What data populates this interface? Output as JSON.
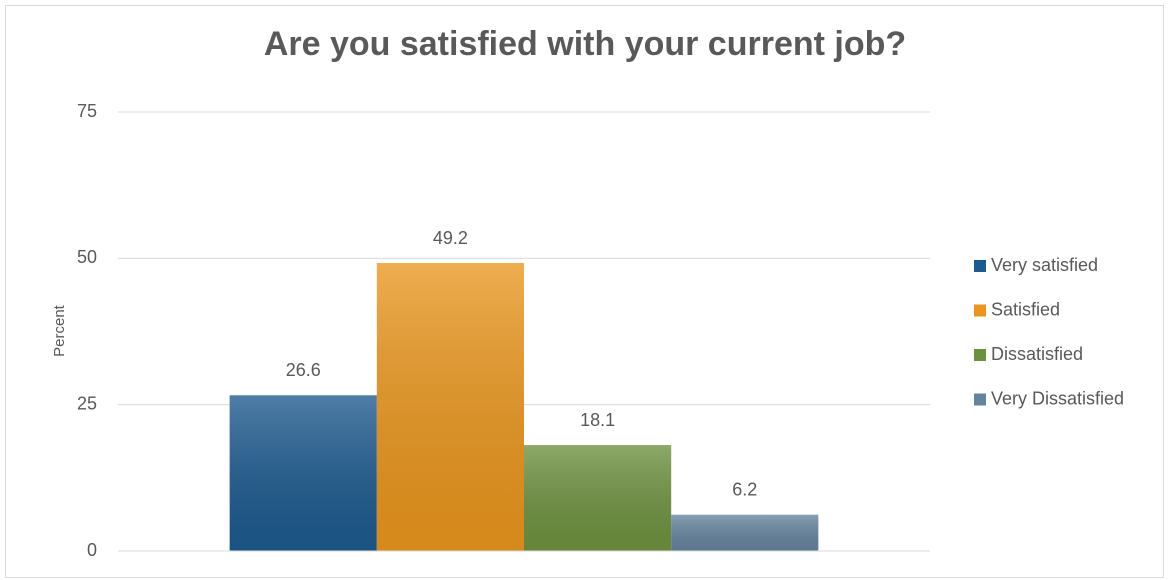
{
  "chart_data": {
    "type": "bar",
    "title": "Are you satisfied with your current job?",
    "y_label": "Percent",
    "categories": [
      null
    ],
    "series": [
      {
        "name": "Very satisfied",
        "color": "#1d5a8e",
        "values": [
          26.6
        ]
      },
      {
        "name": "Satisfied",
        "color": "#e9961e",
        "values": [
          49.2
        ]
      },
      {
        "name": "Dissatisfied",
        "color": "#6e9140",
        "values": [
          18.1
        ]
      },
      {
        "name": "Very Dissatisfied",
        "color": "#66839e",
        "values": [
          6.2
        ]
      }
    ],
    "ylim": [
      0,
      75
    ],
    "yticks": [
      0,
      25,
      50,
      75
    ],
    "grid": true,
    "legend": "right"
  }
}
